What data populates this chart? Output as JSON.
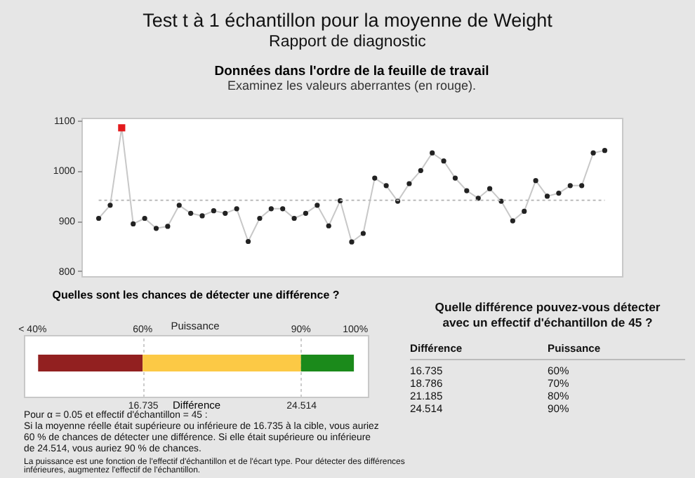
{
  "chart_data": [
    {
      "type": "other",
      "title": "Test t à 1 échantillon pour la moyenne de Weight",
      "subtitle": "Rapport de diagnostic"
    },
    {
      "type": "line",
      "title": "Données dans l'ordre de la feuille de travail",
      "subtitle": "Examinez les valeurs aberrantes (en rouge).",
      "categories": [
        null,
        null,
        null,
        null,
        null,
        null,
        null,
        null,
        null,
        null,
        null,
        null,
        null,
        null,
        null,
        null,
        null,
        null,
        null,
        null,
        null,
        null,
        null,
        null,
        null,
        null,
        null,
        null,
        null,
        null,
        null,
        null,
        null,
        null,
        null,
        null,
        null,
        null,
        null,
        null,
        null,
        null,
        null,
        null,
        null
      ],
      "series": [
        {
          "color": "#c8c8c8",
          "values": [
            905,
            931,
            1085,
            894,
            905,
            885,
            889,
            931,
            915,
            910,
            920,
            915,
            924,
            859,
            905,
            924,
            924,
            905,
            915,
            931,
            890,
            940,
            858,
            875,
            985,
            970,
            939,
            974,
            1000,
            1035,
            1019,
            985,
            960,
            945,
            964,
            939,
            900,
            919,
            980,
            949,
            955,
            970,
            970,
            1035,
            1040
          ],
          "colors": [
            "#222222",
            "#222222",
            "#e31a1c",
            "#222222",
            "#222222",
            "#222222",
            "#222222",
            "#222222",
            "#222222",
            "#222222",
            "#222222",
            "#222222",
            "#222222",
            "#222222",
            "#222222",
            "#222222",
            "#222222",
            "#222222",
            "#222222",
            "#222222",
            "#222222",
            "#222222",
            "#222222",
            "#222222",
            "#222222",
            "#222222",
            "#222222",
            "#222222",
            "#222222",
            "#222222",
            "#222222",
            "#222222",
            "#222222",
            "#222222",
            "#222222",
            "#222222",
            "#222222",
            "#222222",
            "#222222",
            "#222222",
            "#222222",
            "#222222",
            "#222222",
            "#222222",
            "#222222"
          ]
        }
      ],
      "marker": "circle",
      "ylim": [
        790,
        1105
      ],
      "yticks": [
        800,
        900,
        1000,
        1100
      ],
      "tick_labels": "y",
      "ref_lines": [
        {
          "axis": "y",
          "value": 941,
          "color": "#bbbbbb",
          "line_style": "dotted"
        }
      ]
    },
    {
      "type": "bar",
      "orientation": "horizontal",
      "title": "Quelles sont les chances de détecter une différence ?",
      "xlabel": "Différence",
      "x2label": "Puissance",
      "categories": [
        null
      ],
      "series": [
        {
          "color": "#922020",
          "base": [
            11.6
          ],
          "values": [
            5.135
          ]
        },
        {
          "color": "#fcc945",
          "base": [
            16.735
          ],
          "values": [
            7.779
          ]
        },
        {
          "color": "#1b8a1b",
          "base": [
            24.514
          ],
          "values": [
            2.6
          ]
        }
      ],
      "xlim": [
        10.9,
        27.8
      ],
      "xticks": [
        16.735,
        24.514
      ],
      "grid": "x",
      "annotations": [
        "< 40%",
        "60%",
        "90%",
        "100%",
        "Pour α = 0.05 et effectif d'échantillon = 45 :",
        "Si la moyenne réelle était supérieure ou inférieure de 16.735 à la cible, vous auriez 60 % de chances de détecter une différence. Si elle était supérieure ou inférieure de 24.514, vous auriez 90 % de chances.",
        "La puissance est une fonction de l'effectif d'échantillon et de l'écart type. Pour détecter des différences inférieures, augmentez l'effectif de l'échantillon."
      ]
    },
    {
      "type": "other",
      "title": "Quelle différence pouvez-vous détecter avec un effectif d'échantillon de 45 ?",
      "annotations": [
        "Différence",
        "Puissance",
        "16.735",
        "60%",
        "18.786",
        "70%",
        "21.185",
        "80%",
        "24.514",
        "90%"
      ]
    }
  ]
}
